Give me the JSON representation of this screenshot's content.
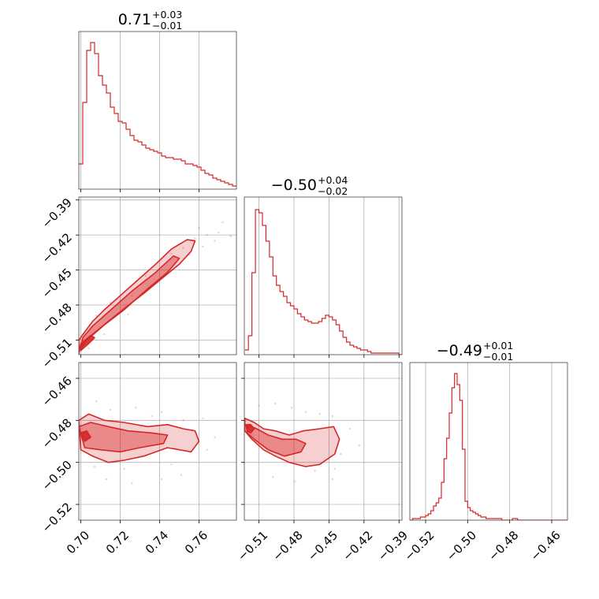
{
  "figure": {
    "color": "#d62728",
    "type_note": "corner"
  },
  "chart_data": [
    {
      "panel": "hist-p1",
      "type": "histogram",
      "title": {
        "median": "0.71",
        "plus": "+0.03",
        "minus": "−0.01"
      },
      "xlim": [
        0.699,
        0.779
      ],
      "x_ticks": [
        0.7,
        0.72,
        0.74,
        0.76
      ],
      "x_tick_labels": [
        "0.70",
        "0.72",
        "0.74",
        "0.76"
      ],
      "bin_start": 0.699,
      "bin_width": 0.002,
      "values": [
        0.16,
        0.55,
        0.88,
        0.93,
        0.86,
        0.72,
        0.66,
        0.61,
        0.52,
        0.48,
        0.43,
        0.42,
        0.38,
        0.34,
        0.31,
        0.3,
        0.28,
        0.26,
        0.25,
        0.24,
        0.23,
        0.21,
        0.2,
        0.2,
        0.19,
        0.19,
        0.18,
        0.16,
        0.16,
        0.15,
        0.14,
        0.12,
        0.1,
        0.09,
        0.07,
        0.06,
        0.05,
        0.04,
        0.03,
        0.02
      ]
    },
    {
      "panel": "hist-p2",
      "type": "histogram",
      "title": {
        "median": "−0.50",
        "plus": "+0.04",
        "minus": "−0.02"
      },
      "xlim": [
        -0.5225,
        -0.3875
      ],
      "x_ticks": [
        -0.51,
        -0.48,
        -0.45,
        -0.42,
        -0.39
      ],
      "x_tick_labels": [
        "−0.51",
        "−0.48",
        "−0.45",
        "−0.42",
        "−0.39"
      ],
      "bin_start": -0.522,
      "bin_width": 0.003,
      "values": [
        0.03,
        0.12,
        0.52,
        0.92,
        0.9,
        0.82,
        0.72,
        0.62,
        0.5,
        0.44,
        0.4,
        0.37,
        0.33,
        0.31,
        0.29,
        0.26,
        0.24,
        0.22,
        0.21,
        0.2,
        0.2,
        0.21,
        0.23,
        0.25,
        0.24,
        0.22,
        0.19,
        0.15,
        0.11,
        0.08,
        0.06,
        0.05,
        0.04,
        0.03,
        0.03,
        0.02,
        0.01,
        0.01,
        0.01,
        0.01,
        0.01,
        0.01,
        0.01,
        0.01,
        0.0
      ]
    },
    {
      "panel": "hist-p3",
      "type": "histogram",
      "title": {
        "median": "−0.49",
        "plus": "+0.01",
        "minus": "−0.01"
      },
      "xlim": [
        -0.5275,
        -0.4525
      ],
      "x_ticks": [
        -0.52,
        -0.5,
        -0.48,
        -0.46
      ],
      "x_tick_labels": [
        "−0.52",
        "−0.50",
        "−0.48",
        "−0.46"
      ],
      "bin_start": -0.5275,
      "bin_width": 0.00125,
      "values": [
        0.0,
        0.01,
        0.01,
        0.01,
        0.02,
        0.02,
        0.03,
        0.04,
        0.06,
        0.09,
        0.11,
        0.14,
        0.24,
        0.39,
        0.52,
        0.68,
        0.84,
        0.93,
        0.86,
        0.76,
        0.45,
        0.12,
        0.08,
        0.06,
        0.05,
        0.04,
        0.03,
        0.02,
        0.02,
        0.01,
        0.01,
        0.01,
        0.01,
        0.01,
        0.01,
        0.0,
        0.0,
        0.0,
        0.0,
        0.01,
        0.01,
        0.0,
        0.0,
        0.0,
        0.0,
        0.0,
        0.0,
        0.0,
        0.0,
        0.0,
        0.0,
        0.0,
        0.0,
        0.0,
        0.0,
        0.0,
        0.0,
        0.0,
        0.0,
        0.0
      ]
    },
    {
      "panel": "scatter-p1-p2",
      "type": "scatter",
      "xlim": [
        0.699,
        0.779
      ],
      "ylim": [
        -0.5225,
        -0.3875
      ],
      "x_ticks": [
        0.7,
        0.72,
        0.74,
        0.76
      ],
      "y_ticks": [
        -0.51,
        -0.48,
        -0.45,
        -0.42,
        -0.39
      ],
      "y_tick_labels": [
        "−0.51",
        "−0.48",
        "−0.45",
        "−0.42",
        "−0.39"
      ],
      "contours": [
        {
          "level": 1,
          "points": [
            [
              0.699,
              -0.522
            ],
            [
              0.7,
              -0.513
            ],
            [
              0.706,
              -0.505
            ],
            [
              0.714,
              -0.494
            ],
            [
              0.722,
              -0.483
            ],
            [
              0.732,
              -0.47
            ],
            [
              0.742,
              -0.456
            ],
            [
              0.75,
              -0.445
            ],
            [
              0.756,
              -0.434
            ],
            [
              0.758,
              -0.425
            ],
            [
              0.754,
              -0.424
            ],
            [
              0.746,
              -0.432
            ],
            [
              0.738,
              -0.445
            ],
            [
              0.728,
              -0.46
            ],
            [
              0.72,
              -0.472
            ],
            [
              0.712,
              -0.484
            ],
            [
              0.706,
              -0.494
            ],
            [
              0.702,
              -0.503
            ],
            [
              0.699,
              -0.51
            ]
          ]
        },
        {
          "level": 2,
          "points": [
            [
              0.7,
              -0.518
            ],
            [
              0.703,
              -0.51
            ],
            [
              0.712,
              -0.497
            ],
            [
              0.722,
              -0.484
            ],
            [
              0.734,
              -0.466
            ],
            [
              0.744,
              -0.452
            ],
            [
              0.75,
              -0.44
            ],
            [
              0.747,
              -0.438
            ],
            [
              0.738,
              -0.452
            ],
            [
              0.726,
              -0.468
            ],
            [
              0.714,
              -0.486
            ],
            [
              0.706,
              -0.498
            ],
            [
              0.701,
              -0.508
            ]
          ]
        },
        {
          "level": 3,
          "points": [
            [
              0.7,
              -0.519
            ],
            [
              0.704,
              -0.513
            ],
            [
              0.707,
              -0.508
            ],
            [
              0.705,
              -0.506
            ],
            [
              0.701,
              -0.512
            ]
          ]
        }
      ],
      "scatter": [
        [
          0.726,
          -0.472
        ],
        [
          0.741,
          -0.447
        ],
        [
          0.752,
          -0.431
        ],
        [
          0.764,
          -0.42
        ],
        [
          0.77,
          -0.418
        ],
        [
          0.776,
          -0.421
        ],
        [
          0.708,
          -0.489
        ],
        [
          0.715,
          -0.478
        ],
        [
          0.733,
          -0.455
        ],
        [
          0.746,
          -0.436
        ],
        [
          0.758,
          -0.423
        ],
        [
          0.762,
          -0.43
        ],
        [
          0.738,
          -0.461
        ],
        [
          0.704,
          -0.517
        ],
        [
          0.712,
          -0.505
        ],
        [
          0.724,
          -0.488
        ],
        [
          0.744,
          -0.451
        ],
        [
          0.755,
          -0.437
        ],
        [
          0.768,
          -0.425
        ],
        [
          0.772,
          -0.409
        ],
        [
          0.76,
          -0.414
        ]
      ]
    },
    {
      "panel": "scatter-p1-p3",
      "type": "scatter",
      "xlim": [
        0.699,
        0.779
      ],
      "ylim": [
        -0.5275,
        -0.4525
      ],
      "x_ticks": [
        0.7,
        0.72,
        0.74,
        0.76
      ],
      "y_ticks": [
        -0.52,
        -0.5,
        -0.48,
        -0.46
      ],
      "y_tick_labels": [
        "−0.52",
        "−0.50",
        "−0.48",
        "−0.46"
      ],
      "contours": [
        {
          "level": 1,
          "points": [
            [
              0.699,
              -0.48
            ],
            [
              0.704,
              -0.477
            ],
            [
              0.712,
              -0.48
            ],
            [
              0.722,
              -0.481
            ],
            [
              0.734,
              -0.483
            ],
            [
              0.744,
              -0.482
            ],
            [
              0.752,
              -0.484
            ],
            [
              0.758,
              -0.485
            ],
            [
              0.76,
              -0.49
            ],
            [
              0.756,
              -0.495
            ],
            [
              0.744,
              -0.493
            ],
            [
              0.732,
              -0.497
            ],
            [
              0.722,
              -0.499
            ],
            [
              0.714,
              -0.5
            ],
            [
              0.706,
              -0.497
            ],
            [
              0.7,
              -0.494
            ]
          ]
        },
        {
          "level": 2,
          "points": [
            [
              0.699,
              -0.483
            ],
            [
              0.705,
              -0.481
            ],
            [
              0.714,
              -0.483
            ],
            [
              0.724,
              -0.485
            ],
            [
              0.736,
              -0.486
            ],
            [
              0.744,
              -0.487
            ],
            [
              0.742,
              -0.491
            ],
            [
              0.73,
              -0.493
            ],
            [
              0.72,
              -0.495
            ],
            [
              0.71,
              -0.494
            ],
            [
              0.702,
              -0.493
            ]
          ]
        },
        {
          "level": 3,
          "points": [
            [
              0.7,
              -0.486
            ],
            [
              0.703,
              -0.485
            ],
            [
              0.705,
              -0.488
            ],
            [
              0.702,
              -0.49
            ]
          ]
        }
      ],
      "scatter": [
        [
          0.708,
          -0.471
        ],
        [
          0.715,
          -0.475
        ],
        [
          0.728,
          -0.474
        ],
        [
          0.741,
          -0.476
        ],
        [
          0.762,
          -0.479
        ],
        [
          0.768,
          -0.488
        ],
        [
          0.707,
          -0.502
        ],
        [
          0.722,
          -0.503
        ],
        [
          0.746,
          -0.501
        ],
        [
          0.751,
          -0.506
        ],
        [
          0.741,
          -0.508
        ],
        [
          0.713,
          -0.508
        ],
        [
          0.726,
          -0.51
        ],
        [
          0.764,
          -0.494
        ],
        [
          0.736,
          -0.478
        ],
        [
          0.752,
          -0.48
        ]
      ]
    },
    {
      "panel": "scatter-p2-p3",
      "type": "scatter",
      "xlim": [
        -0.5225,
        -0.3875
      ],
      "ylim": [
        -0.5275,
        -0.4525
      ],
      "x_ticks": [
        -0.51,
        -0.48,
        -0.45,
        -0.42,
        -0.39
      ],
      "y_ticks": [
        -0.52,
        -0.5,
        -0.48,
        -0.46
      ],
      "contours": [
        {
          "level": 1,
          "points": [
            [
              -0.522,
              -0.479
            ],
            [
              -0.514,
              -0.481
            ],
            [
              -0.506,
              -0.484
            ],
            [
              -0.496,
              -0.485
            ],
            [
              -0.484,
              -0.487
            ],
            [
              -0.472,
              -0.485
            ],
            [
              -0.458,
              -0.484
            ],
            [
              -0.446,
              -0.483
            ],
            [
              -0.441,
              -0.489
            ],
            [
              -0.445,
              -0.496
            ],
            [
              -0.458,
              -0.501
            ],
            [
              -0.47,
              -0.502
            ],
            [
              -0.484,
              -0.5
            ],
            [
              -0.496,
              -0.497
            ],
            [
              -0.506,
              -0.494
            ],
            [
              -0.516,
              -0.489
            ],
            [
              -0.522,
              -0.485
            ]
          ]
        },
        {
          "level": 2,
          "points": [
            [
              -0.521,
              -0.482
            ],
            [
              -0.512,
              -0.484
            ],
            [
              -0.502,
              -0.487
            ],
            [
              -0.49,
              -0.489
            ],
            [
              -0.478,
              -0.489
            ],
            [
              -0.47,
              -0.491
            ],
            [
              -0.474,
              -0.495
            ],
            [
              -0.488,
              -0.497
            ],
            [
              -0.502,
              -0.494
            ],
            [
              -0.514,
              -0.489
            ],
            [
              -0.52,
              -0.486
            ]
          ]
        },
        {
          "level": 3,
          "points": [
            [
              -0.52,
              -0.482
            ],
            [
              -0.517,
              -0.482
            ],
            [
              -0.514,
              -0.484
            ],
            [
              -0.517,
              -0.486
            ],
            [
              -0.52,
              -0.485
            ]
          ]
        }
      ],
      "scatter": [
        [
          -0.496,
          -0.472
        ],
        [
          -0.482,
          -0.474
        ],
        [
          -0.47,
          -0.476
        ],
        [
          -0.447,
          -0.478
        ],
        [
          -0.432,
          -0.484
        ],
        [
          -0.424,
          -0.492
        ],
        [
          -0.498,
          -0.507
        ],
        [
          -0.479,
          -0.509
        ],
        [
          -0.447,
          -0.508
        ],
        [
          -0.44,
          -0.496
        ],
        [
          -0.51,
          -0.473
        ],
        [
          -0.462,
          -0.504
        ],
        [
          -0.445,
          -0.503
        ],
        [
          -0.458,
          -0.477
        ]
      ]
    }
  ]
}
